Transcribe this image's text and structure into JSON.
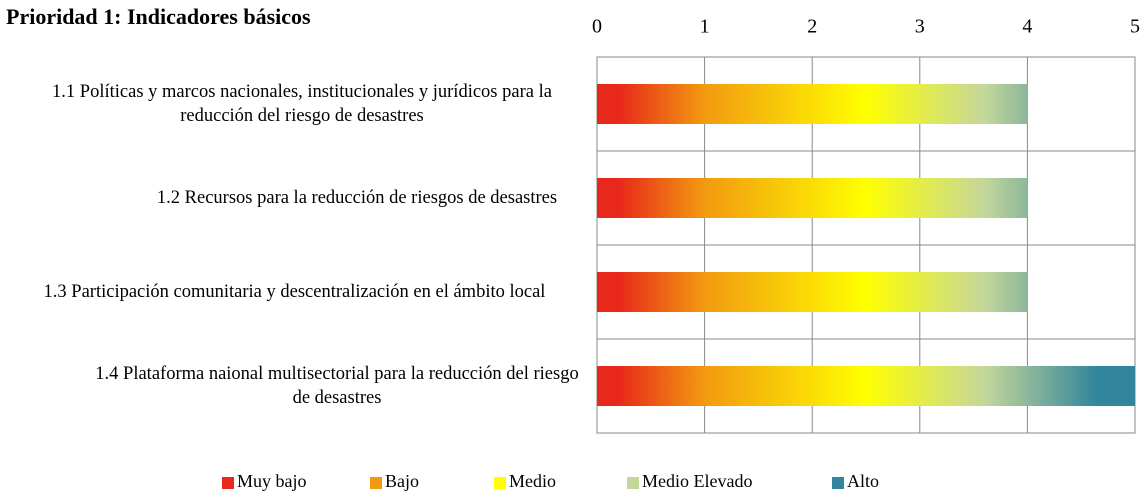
{
  "chart_data": {
    "type": "hbar",
    "title": "Prioridad 1: Indicadores básicos",
    "categories": [
      "1.1 Políticas y marcos nacionales, institucionales y jurídicos para la reducción del riesgo de desastres",
      "1.2 Recursos para la reducción de riesgos de desastres",
      "1.3 Participación comunitaria y descentralización en el ámbito local",
      "1.4 Plataforma naional multisectorial para la reducción del riesgo de desastres"
    ],
    "values": [
      4,
      4,
      4,
      5
    ],
    "xlim": [
      0,
      5
    ],
    "xticks": [
      0,
      1,
      2,
      3,
      4,
      5
    ],
    "grid": true,
    "legend": [
      {
        "name": "Muy bajo",
        "color": "#e8281a"
      },
      {
        "name": "Bajo",
        "color": "#f29a10"
      },
      {
        "name": "Medio",
        "color": "#ffff00"
      },
      {
        "name": "Medio Elevado",
        "color": "#c4d79b"
      },
      {
        "name": "Alto",
        "color": "#31859c"
      }
    ]
  }
}
